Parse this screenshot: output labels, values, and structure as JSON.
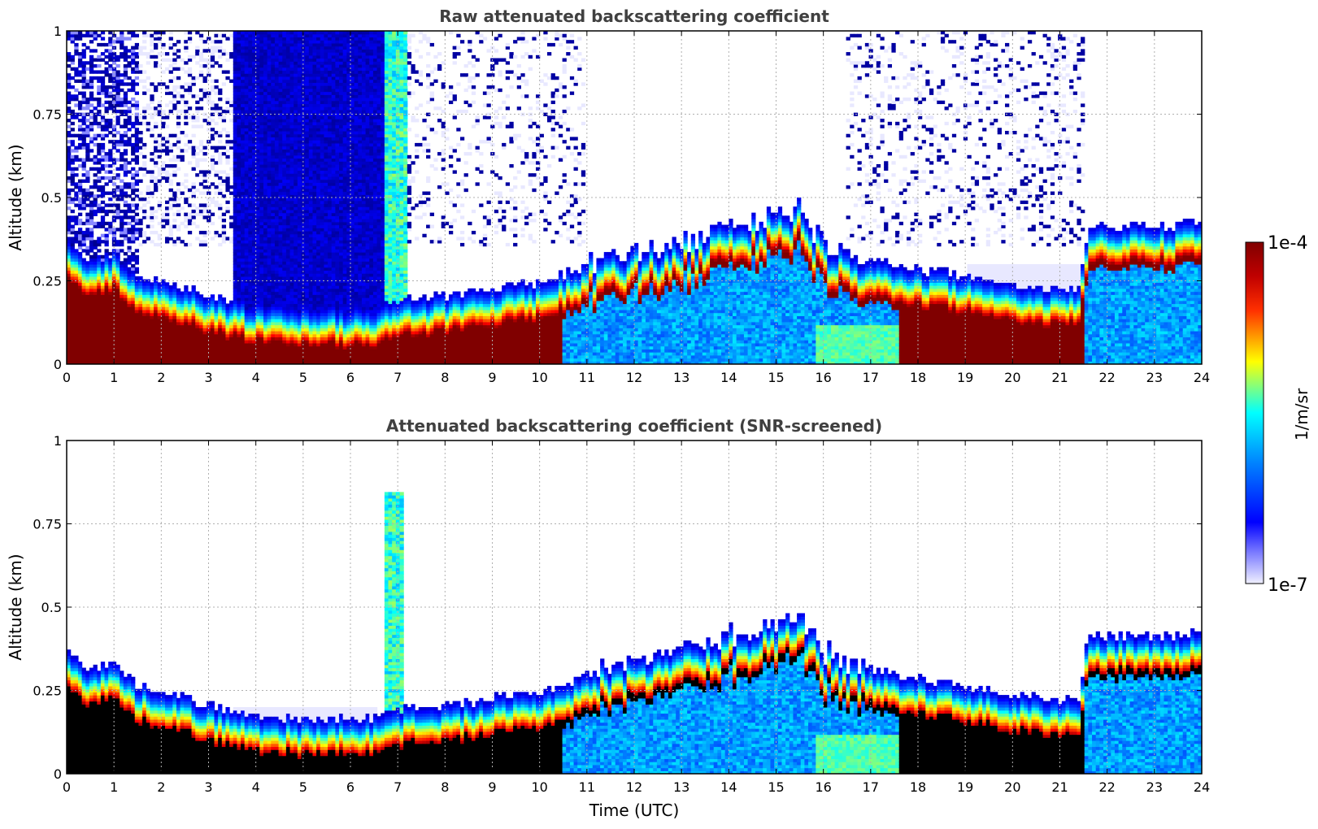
{
  "chart_data": [
    {
      "type": "heatmap",
      "title": "Raw attenuated backscattering coefficient",
      "xlabel": "",
      "ylabel": "Altitude (km)",
      "xlim": [
        0,
        24
      ],
      "ylim": [
        0,
        1
      ],
      "xticks": [
        "0",
        "1",
        "2",
        "3",
        "4",
        "5",
        "6",
        "7",
        "8",
        "9",
        "10",
        "11",
        "12",
        "13",
        "14",
        "15",
        "16",
        "17",
        "18",
        "19",
        "20",
        "21",
        "22",
        "23",
        "24"
      ],
      "yticks": [
        "0",
        "0.25",
        "0.5",
        "0.75",
        "1"
      ],
      "grid": true,
      "layer_profile": {
        "time_utc": [
          0,
          0.5,
          1,
          1.5,
          2,
          3,
          4,
          5,
          6,
          6.5,
          7,
          8,
          9,
          10,
          11,
          12,
          13,
          14,
          15,
          15.5,
          16,
          17,
          18,
          19,
          20,
          21,
          21.4,
          21.6,
          22,
          23,
          23.5,
          24
        ],
        "layer_top_km": [
          0.33,
          0.28,
          0.3,
          0.23,
          0.22,
          0.17,
          0.14,
          0.13,
          0.13,
          0.13,
          0.16,
          0.17,
          0.19,
          0.21,
          0.26,
          0.31,
          0.33,
          0.38,
          0.42,
          0.43,
          0.33,
          0.28,
          0.25,
          0.23,
          0.2,
          0.19,
          0.19,
          0.38,
          0.38,
          0.38,
          0.38,
          0.4
        ]
      },
      "screened": false
    },
    {
      "type": "heatmap",
      "title": "Attenuated backscattering coefficient (SNR-screened)",
      "xlabel": "Time (UTC)",
      "ylabel": "Altitude (km)",
      "xlim": [
        0,
        24
      ],
      "ylim": [
        0,
        1
      ],
      "xticks": [
        "0",
        "1",
        "2",
        "3",
        "4",
        "5",
        "6",
        "7",
        "8",
        "9",
        "10",
        "11",
        "12",
        "13",
        "14",
        "15",
        "16",
        "17",
        "18",
        "19",
        "20",
        "21",
        "22",
        "23",
        "24"
      ],
      "yticks": [
        "0",
        "0.25",
        "0.5",
        "0.75",
        "1"
      ],
      "grid": true,
      "layer_profile": {
        "time_utc": [
          0,
          0.5,
          1,
          1.5,
          2,
          3,
          4,
          5,
          6,
          6.5,
          7,
          8,
          9,
          10,
          11,
          12,
          13,
          14,
          15,
          15.5,
          16,
          17,
          18,
          19,
          20,
          21,
          21.4,
          21.6,
          22,
          23,
          23.5,
          24
        ],
        "layer_top_km": [
          0.33,
          0.28,
          0.3,
          0.23,
          0.22,
          0.17,
          0.14,
          0.13,
          0.13,
          0.13,
          0.16,
          0.17,
          0.19,
          0.21,
          0.26,
          0.31,
          0.33,
          0.38,
          0.42,
          0.43,
          0.33,
          0.28,
          0.25,
          0.23,
          0.2,
          0.19,
          0.19,
          0.38,
          0.38,
          0.38,
          0.38,
          0.4
        ]
      },
      "screened": true
    }
  ],
  "colorbar": {
    "max_label": "1e-4",
    "min_label": "1e-7",
    "unit_label": "1/m/sr",
    "colormap": "jet",
    "colors": [
      "#eeeeff",
      "#0000ff",
      "#00ffff",
      "#ffff00",
      "#ff0000",
      "#800000"
    ]
  }
}
